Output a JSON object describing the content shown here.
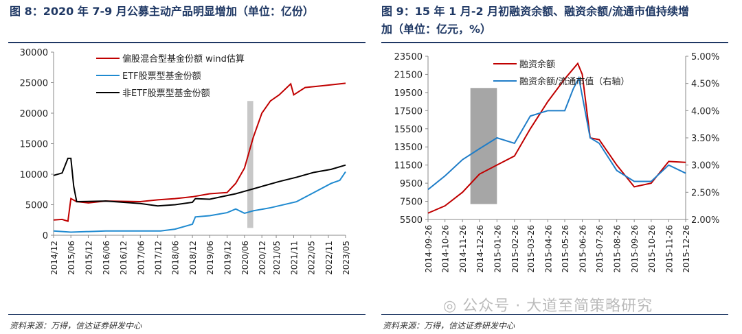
{
  "left": {
    "title": "图 8：2020 年 7-9 月公募主动产品明显增加（单位：亿份）",
    "source": "资料来源：万得，信达证券研发中心"
  },
  "right": {
    "title_line1": "图 9：15 年 1 月-2 月初融资余额、融资余额/流通市值持续增",
    "title_line2": "加（单位：亿元，%）",
    "source": "资料来源：万得，信达证券研发中心"
  },
  "watermark": "公众号 · 大道至简策略研究",
  "chart_data": [
    {
      "type": "line",
      "ylim": [
        0,
        30000
      ],
      "yticks": [
        "0",
        "5000",
        "10000",
        "15000",
        "20000",
        "25000",
        "30000"
      ],
      "xticks": [
        "2014/12",
        "2015/06",
        "2015/12",
        "2016/06",
        "2016/12",
        "2017/06",
        "2017/12",
        "2018/06",
        "2018/12",
        "2019/06",
        "2019/12",
        "2020/06",
        "2020/12",
        "2021/05",
        "2021/11",
        "2022/05",
        "2022/11",
        "2023/05"
      ],
      "shade": {
        "x": [
          "2020/07",
          "2020/09"
        ],
        "y": [
          1200,
          22000
        ],
        "color": "#c8c8c8"
      },
      "series": [
        {
          "name": "偏股混合型基金份额 wind估算",
          "color": "#c00000",
          "points": [
            [
              "2014/12",
              2500
            ],
            [
              "2015/03",
              2600
            ],
            [
              "2015/05",
              2300
            ],
            [
              "2015/06",
              6000
            ],
            [
              "2015/08",
              5500
            ],
            [
              "2015/12",
              5300
            ],
            [
              "2016/06",
              5600
            ],
            [
              "2017/06",
              5500
            ],
            [
              "2017/12",
              5800
            ],
            [
              "2018/06",
              6000
            ],
            [
              "2018/12",
              6300
            ],
            [
              "2019/06",
              6800
            ],
            [
              "2019/12",
              7000
            ],
            [
              "2020/03",
              8500
            ],
            [
              "2020/06",
              11000
            ],
            [
              "2020/09",
              16000
            ],
            [
              "2020/12",
              20000
            ],
            [
              "2021/03",
              22000
            ],
            [
              "2021/06",
              23000
            ],
            [
              "2021/10",
              24800
            ],
            [
              "2021/11",
              23000
            ],
            [
              "2022/03",
              24200
            ],
            [
              "2022/09",
              24500
            ],
            [
              "2023/05",
              24900
            ]
          ]
        },
        {
          "name": "ETF股票型基金份额",
          "color": "#1f8ad0",
          "points": [
            [
              "2014/12",
              700
            ],
            [
              "2015/06",
              500
            ],
            [
              "2016/06",
              700
            ],
            [
              "2017/06",
              700
            ],
            [
              "2018/01",
              700
            ],
            [
              "2018/06",
              1000
            ],
            [
              "2018/12",
              1800
            ],
            [
              "2019/01",
              3000
            ],
            [
              "2019/06",
              3200
            ],
            [
              "2019/12",
              3700
            ],
            [
              "2020/03",
              4300
            ],
            [
              "2020/06",
              3600
            ],
            [
              "2020/09",
              4000
            ],
            [
              "2021/03",
              4500
            ],
            [
              "2021/12",
              5500
            ],
            [
              "2022/06",
              7000
            ],
            [
              "2022/12",
              8500
            ],
            [
              "2023/03",
              9000
            ],
            [
              "2023/05",
              10400
            ]
          ]
        },
        {
          "name": "非ETF股票型基金份额",
          "color": "#000000",
          "points": [
            [
              "2014/12",
              9800
            ],
            [
              "2015/03",
              10200
            ],
            [
              "2015/05",
              12600
            ],
            [
              "2015/06",
              12600
            ],
            [
              "2015/07",
              8000
            ],
            [
              "2015/08",
              5500
            ],
            [
              "2016/06",
              5600
            ],
            [
              "2017/06",
              5200
            ],
            [
              "2017/12",
              4800
            ],
            [
              "2018/06",
              5000
            ],
            [
              "2018/12",
              5400
            ],
            [
              "2019/01",
              6000
            ],
            [
              "2019/06",
              5900
            ],
            [
              "2019/12",
              6500
            ],
            [
              "2020/03",
              6800
            ],
            [
              "2020/06",
              7200
            ],
            [
              "2020/09",
              7600
            ],
            [
              "2020/12",
              8000
            ],
            [
              "2021/06",
              8800
            ],
            [
              "2021/12",
              9500
            ],
            [
              "2022/06",
              10300
            ],
            [
              "2022/12",
              10800
            ],
            [
              "2023/05",
              11500
            ]
          ]
        }
      ]
    },
    {
      "type": "line",
      "ylim": [
        5500,
        23500
      ],
      "y2lim": [
        2,
        5
      ],
      "yticks": [
        "5500",
        "7500",
        "9500",
        "11500",
        "13500",
        "15500",
        "17500",
        "19500",
        "21500",
        "23500"
      ],
      "y2ticks": [
        "2.00%",
        "2.50%",
        "3.00%",
        "3.50%",
        "4.00%",
        "4.50%",
        "5.00%"
      ],
      "xticks": [
        "2014-09-26",
        "2014-10-26",
        "2014-11-26",
        "2014-12-26",
        "2015-01-26",
        "2015-02-26",
        "2015-03-26",
        "2015-04-26",
        "2015-05-26",
        "2015-06-26",
        "2015-07-26",
        "2015-08-26",
        "2015-09-26",
        "2015-10-26",
        "2015-11-26",
        "2015-12-26"
      ],
      "shade": {
        "x": [
          "2014-12-10",
          "2015-01-26"
        ],
        "y": [
          7200,
          20000
        ],
        "color": "#a6a6a6"
      },
      "series": [
        {
          "name": "融资余额",
          "axis": "left",
          "color": "#c00000",
          "points": [
            [
              "2014-09-26",
              6200
            ],
            [
              "2014-10-26",
              7000
            ],
            [
              "2014-11-26",
              8500
            ],
            [
              "2014-12-26",
              10500
            ],
            [
              "2015-01-26",
              11500
            ],
            [
              "2015-02-26",
              12500
            ],
            [
              "2015-03-26",
              15500
            ],
            [
              "2015-04-26",
              18500
            ],
            [
              "2015-05-26",
              21000
            ],
            [
              "2015-06-18",
              22700
            ],
            [
              "2015-06-26",
              21500
            ],
            [
              "2015-07-10",
              14500
            ],
            [
              "2015-07-26",
              14300
            ],
            [
              "2015-08-26",
              11500
            ],
            [
              "2015-09-26",
              9100
            ],
            [
              "2015-10-26",
              9500
            ],
            [
              "2015-11-26",
              11900
            ],
            [
              "2015-12-26",
              11800
            ]
          ]
        },
        {
          "name": "融资余额/流通市值（右轴）",
          "axis": "right",
          "color": "#1f7dc8",
          "points": [
            [
              "2014-09-26",
              2.55
            ],
            [
              "2014-10-26",
              2.8
            ],
            [
              "2014-11-26",
              3.1
            ],
            [
              "2014-12-26",
              3.3
            ],
            [
              "2015-01-26",
              3.5
            ],
            [
              "2015-02-26",
              3.4
            ],
            [
              "2015-03-26",
              3.9
            ],
            [
              "2015-04-26",
              4.0
            ],
            [
              "2015-05-26",
              4.0
            ],
            [
              "2015-06-10",
              4.4
            ],
            [
              "2015-06-20",
              4.6
            ],
            [
              "2015-07-10",
              3.5
            ],
            [
              "2015-07-26",
              3.4
            ],
            [
              "2015-08-26",
              2.9
            ],
            [
              "2015-09-26",
              2.7
            ],
            [
              "2015-10-26",
              2.7
            ],
            [
              "2015-11-26",
              3.0
            ],
            [
              "2015-12-26",
              2.85
            ]
          ]
        }
      ]
    }
  ]
}
